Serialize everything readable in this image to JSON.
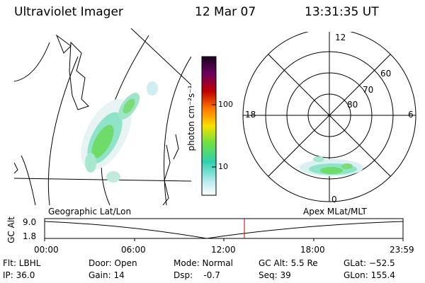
{
  "header": {
    "instrument": "Ultraviolet Imager",
    "date": "12 Mar 07",
    "time": "13:31:35 UT"
  },
  "colorbar": {
    "unit_label": "photon cm⁻²s⁻¹",
    "ticks": [
      "100",
      "10"
    ],
    "scale": "log"
  },
  "polar_plot": {
    "mlt_labels": [
      "12",
      "18",
      "6",
      "0"
    ],
    "lat_labels": [
      "60",
      "70",
      "80"
    ]
  },
  "altitude_strip": {
    "left_title": "Geographic Lat/Lon",
    "right_title": "Apex MLat/MLT",
    "axis_label": "GC Alt",
    "y_ticks": [
      "9.0",
      "1.8"
    ],
    "time_ticks": [
      "00:00",
      "06:00",
      "12:00",
      "18:00",
      "23:59"
    ]
  },
  "info": {
    "flt": "Flt: LBHL",
    "ip": "IP: 36.0",
    "door": "Door: Open",
    "gain": "Gain: 14",
    "mode": "Mode: Normal",
    "dsp": "Dsp:    -0.7",
    "gc_alt": "GC Alt: 5.5 Re",
    "seq": "Seq: 39",
    "glat": "GLat: −52.5",
    "glon": "GLon: 155.4"
  },
  "colors": {
    "marker": "#cc0000",
    "line": "#000000"
  }
}
